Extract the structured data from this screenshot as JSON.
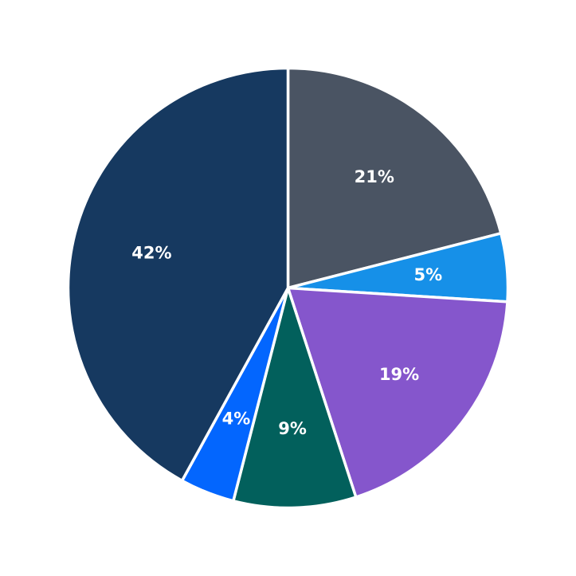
{
  "chart_data": {
    "type": "pie",
    "start": "12 o'clock",
    "direction": "clockwise",
    "slices": [
      {
        "label": "21%",
        "value": 21,
        "color": "#4a5463"
      },
      {
        "label": "5%",
        "value": 5,
        "color": "#1690e8"
      },
      {
        "label": "19%",
        "value": 19,
        "color": "#8556cc"
      },
      {
        "label": "9%",
        "value": 9,
        "color": "#02605c"
      },
      {
        "label": "4%",
        "value": 4,
        "color": "#0366fe"
      },
      {
        "label": "42%",
        "value": 42,
        "color": "#163960"
      }
    ]
  }
}
